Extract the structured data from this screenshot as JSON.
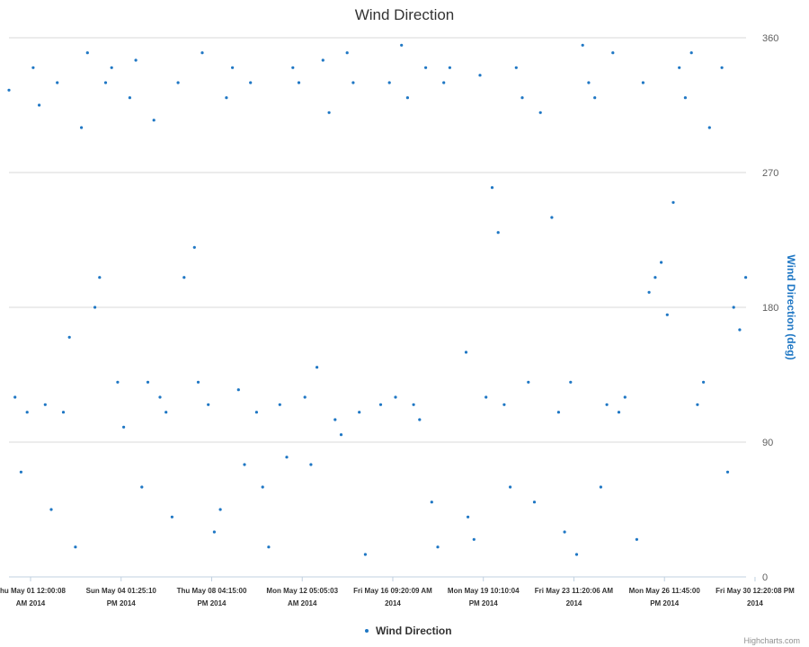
{
  "chart_data": {
    "type": "scatter",
    "title": "Wind Direction",
    "ylabel": "Wind Direction (deg)",
    "xlabel": "",
    "ylim": [
      0,
      360
    ],
    "yticks": [
      0,
      90,
      180,
      270,
      360
    ],
    "grid": true,
    "legend_position": "bottom-center",
    "x_range": [
      "2014-05-01T00:00:08",
      "2014-05-31T12:20:08"
    ],
    "x_ticks": [
      {
        "line1": "Thu May 01 12:00:08",
        "line2": "AM 2014"
      },
      {
        "line1": "Sun May 04 01:25:10",
        "line2": "PM 2014"
      },
      {
        "line1": "Thu May 08 04:15:00",
        "line2": "PM 2014"
      },
      {
        "line1": "Mon May 12 05:05:03",
        "line2": "AM 2014"
      },
      {
        "line1": "Fri May 16 09:20:09 AM",
        "line2": "2014"
      },
      {
        "line1": "Mon May 19 10:10:04",
        "line2": "PM 2014"
      },
      {
        "line1": "Fri May 23 11:20:06 AM",
        "line2": "2014"
      },
      {
        "line1": "Mon May 26 11:45:00",
        "line2": "PM 2014"
      },
      {
        "line1": "Fri May 30 12:20:08 PM",
        "line2": "2014"
      }
    ],
    "series": [
      {
        "name": "Wind Direction",
        "color": "#1f77c4",
        "points": [
          [
            "2014-05-01T00:00:08",
            325
          ],
          [
            "2014-05-01T06:00:00",
            120
          ],
          [
            "2014-05-01T12:00:00",
            70
          ],
          [
            "2014-05-01T18:00:00",
            110
          ],
          [
            "2014-05-02T00:00:00",
            340
          ],
          [
            "2014-05-02T06:00:00",
            315
          ],
          [
            "2014-05-02T12:00:00",
            115
          ],
          [
            "2014-05-02T18:00:00",
            45
          ],
          [
            "2014-05-03T00:00:00",
            330
          ],
          [
            "2014-05-03T06:00:00",
            110
          ],
          [
            "2014-05-03T12:00:00",
            160
          ],
          [
            "2014-05-03T18:00:00",
            20
          ],
          [
            "2014-05-04T00:00:00",
            300
          ],
          [
            "2014-05-04T06:00:00",
            350
          ],
          [
            "2014-05-04T13:25:10",
            180
          ],
          [
            "2014-05-04T18:00:00",
            200
          ],
          [
            "2014-05-05T00:00:00",
            330
          ],
          [
            "2014-05-05T06:00:00",
            340
          ],
          [
            "2014-05-05T12:00:00",
            130
          ],
          [
            "2014-05-05T18:00:00",
            100
          ],
          [
            "2014-05-06T00:00:00",
            320
          ],
          [
            "2014-05-06T06:00:00",
            345
          ],
          [
            "2014-05-06T12:00:00",
            60
          ],
          [
            "2014-05-06T18:00:00",
            130
          ],
          [
            "2014-05-07T00:00:00",
            305
          ],
          [
            "2014-05-07T06:00:00",
            120
          ],
          [
            "2014-05-07T12:00:00",
            110
          ],
          [
            "2014-05-07T18:00:00",
            40
          ],
          [
            "2014-05-08T00:00:00",
            330
          ],
          [
            "2014-05-08T06:00:00",
            200
          ],
          [
            "2014-05-08T16:15:00",
            220
          ],
          [
            "2014-05-08T20:00:00",
            130
          ],
          [
            "2014-05-09T00:00:00",
            350
          ],
          [
            "2014-05-09T06:00:00",
            115
          ],
          [
            "2014-05-09T12:00:00",
            30
          ],
          [
            "2014-05-09T18:00:00",
            45
          ],
          [
            "2014-05-10T00:00:00",
            320
          ],
          [
            "2014-05-10T06:00:00",
            340
          ],
          [
            "2014-05-10T12:00:00",
            125
          ],
          [
            "2014-05-10T18:00:00",
            75
          ],
          [
            "2014-05-11T00:00:00",
            330
          ],
          [
            "2014-05-11T06:00:00",
            110
          ],
          [
            "2014-05-11T12:00:00",
            60
          ],
          [
            "2014-05-11T18:00:00",
            20
          ],
          [
            "2014-05-12T05:05:03",
            115
          ],
          [
            "2014-05-12T12:00:00",
            80
          ],
          [
            "2014-05-12T18:00:00",
            340
          ],
          [
            "2014-05-13T00:00:00",
            330
          ],
          [
            "2014-05-13T06:00:00",
            120
          ],
          [
            "2014-05-13T12:00:00",
            75
          ],
          [
            "2014-05-13T18:00:00",
            140
          ],
          [
            "2014-05-14T00:00:00",
            345
          ],
          [
            "2014-05-14T06:00:00",
            310
          ],
          [
            "2014-05-14T12:00:00",
            105
          ],
          [
            "2014-05-14T18:00:00",
            95
          ],
          [
            "2014-05-15T00:00:00",
            350
          ],
          [
            "2014-05-15T06:00:00",
            330
          ],
          [
            "2014-05-15T12:00:00",
            110
          ],
          [
            "2014-05-15T18:00:00",
            15
          ],
          [
            "2014-05-16T09:20:09",
            115
          ],
          [
            "2014-05-16T18:00:00",
            330
          ],
          [
            "2014-05-17T00:00:00",
            120
          ],
          [
            "2014-05-17T06:00:00",
            355
          ],
          [
            "2014-05-17T12:00:00",
            320
          ],
          [
            "2014-05-17T18:00:00",
            115
          ],
          [
            "2014-05-18T00:00:00",
            105
          ],
          [
            "2014-05-18T06:00:00",
            340
          ],
          [
            "2014-05-18T12:00:00",
            50
          ],
          [
            "2014-05-18T18:00:00",
            20
          ],
          [
            "2014-05-19T00:00:00",
            330
          ],
          [
            "2014-05-19T06:00:00",
            340
          ],
          [
            "2014-05-19T22:10:04",
            150
          ],
          [
            "2014-05-20T00:00:00",
            40
          ],
          [
            "2014-05-20T06:00:00",
            25
          ],
          [
            "2014-05-20T12:00:00",
            335
          ],
          [
            "2014-05-20T18:00:00",
            120
          ],
          [
            "2014-05-21T00:00:00",
            260
          ],
          [
            "2014-05-21T06:00:00",
            230
          ],
          [
            "2014-05-21T12:00:00",
            115
          ],
          [
            "2014-05-21T18:00:00",
            60
          ],
          [
            "2014-05-22T00:00:00",
            340
          ],
          [
            "2014-05-22T06:00:00",
            320
          ],
          [
            "2014-05-22T12:00:00",
            130
          ],
          [
            "2014-05-22T18:00:00",
            50
          ],
          [
            "2014-05-23T00:00:00",
            310
          ],
          [
            "2014-05-23T11:20:06",
            240
          ],
          [
            "2014-05-23T18:00:00",
            110
          ],
          [
            "2014-05-24T00:00:00",
            30
          ],
          [
            "2014-05-24T06:00:00",
            130
          ],
          [
            "2014-05-24T12:00:00",
            15
          ],
          [
            "2014-05-24T18:00:00",
            355
          ],
          [
            "2014-05-25T00:00:00",
            330
          ],
          [
            "2014-05-25T06:00:00",
            320
          ],
          [
            "2014-05-25T12:00:00",
            60
          ],
          [
            "2014-05-25T18:00:00",
            115
          ],
          [
            "2014-05-26T00:00:00",
            350
          ],
          [
            "2014-05-26T06:00:00",
            110
          ],
          [
            "2014-05-26T12:00:00",
            120
          ],
          [
            "2014-05-26T23:45:00",
            25
          ],
          [
            "2014-05-27T06:00:00",
            330
          ],
          [
            "2014-05-27T12:00:00",
            190
          ],
          [
            "2014-05-27T18:00:00",
            200
          ],
          [
            "2014-05-28T00:00:00",
            210
          ],
          [
            "2014-05-28T06:00:00",
            175
          ],
          [
            "2014-05-28T12:00:00",
            250
          ],
          [
            "2014-05-28T18:00:00",
            340
          ],
          [
            "2014-05-29T00:00:00",
            320
          ],
          [
            "2014-05-29T06:00:00",
            350
          ],
          [
            "2014-05-29T12:00:00",
            115
          ],
          [
            "2014-05-29T18:00:00",
            130
          ],
          [
            "2014-05-30T00:00:00",
            300
          ],
          [
            "2014-05-30T12:20:08",
            340
          ],
          [
            "2014-05-30T18:00:00",
            70
          ],
          [
            "2014-05-31T00:00:00",
            180
          ],
          [
            "2014-05-31T06:00:00",
            165
          ],
          [
            "2014-05-31T12:00:00",
            200
          ]
        ]
      }
    ]
  },
  "legend": {
    "label": "Wind Direction"
  },
  "credits": "Highcharts.com"
}
